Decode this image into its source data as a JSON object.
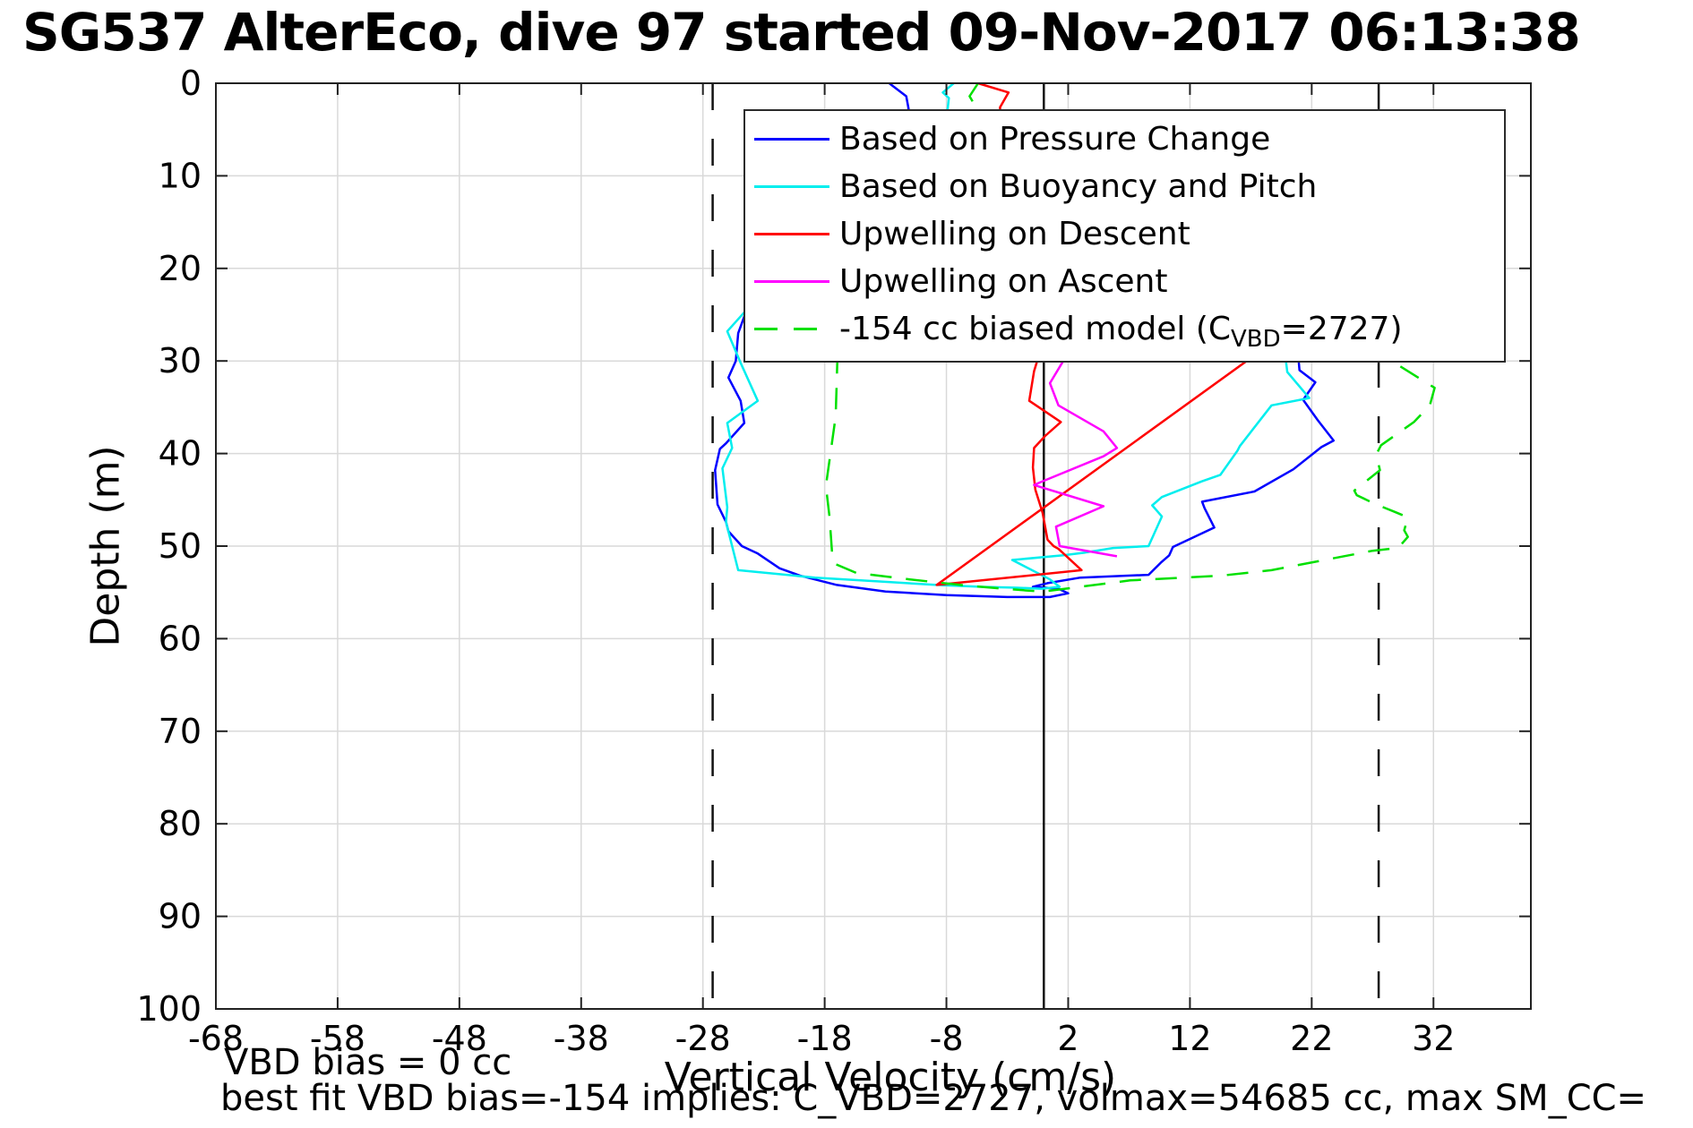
{
  "title": "SG537 AlterEco, dive 97 started 09-Nov-2017 06:13:38",
  "axes": {
    "xlabel": "Vertical Velocity (cm/s)",
    "ylabel": "Depth (m)",
    "x_ticks": [
      -68,
      -58,
      -48,
      -38,
      -28,
      -18,
      -8,
      2,
      12,
      22,
      32
    ],
    "y_ticks": [
      0,
      10,
      20,
      30,
      40,
      50,
      60,
      70,
      80,
      90,
      100
    ]
  },
  "annotations": {
    "vbd_bias": "VBD bias = 0 cc",
    "best_fit": "best fit VBD bias=-154 implies: C_VBD=2727, volmax=54685 cc, max SM_CC="
  },
  "legend": {
    "items": [
      {
        "label": "Based on Pressure Change"
      },
      {
        "label": "Based on Buoyancy and Pitch"
      },
      {
        "label": "Upwelling on Descent"
      },
      {
        "label": "Upwelling on Ascent"
      },
      {
        "label_pre": "-154 cc biased model (C",
        "label_sub": "VBD",
        "label_post": "=2727)"
      }
    ]
  },
  "colors": {
    "grid": "#d9d9d9",
    "axis": "#222222",
    "reference": "#111111",
    "text": "#000000"
  },
  "chart_data": {
    "type": "line",
    "title": "SG537 AlterEco, dive 97 started 09-Nov-2017 06:13:38",
    "xlabel": "Vertical Velocity (cm/s)",
    "ylabel": "Depth (m)",
    "xlim": [
      -68,
      40
    ],
    "ylim": [
      0,
      100
    ],
    "y_inverted": true,
    "grid": true,
    "legend_position": "upper center",
    "x_ticks": [
      -68,
      -58,
      -48,
      -38,
      -28,
      -18,
      -8,
      2,
      12,
      22,
      32
    ],
    "y_ticks": [
      0,
      10,
      20,
      30,
      40,
      50,
      60,
      70,
      80,
      90,
      100
    ],
    "reference_lines": [
      {
        "x": 0,
        "style": "solid",
        "label": "zero vertical velocity"
      },
      {
        "x": -27.2,
        "style": "dashed",
        "label": "max descent pump limit"
      },
      {
        "x": 27.5,
        "style": "dashed",
        "label": "max ascent pump limit"
      }
    ],
    "series": [
      {
        "id": "pressure",
        "name": "Based on Pressure Change",
        "color": "#0000ff",
        "line_style": "solid",
        "points": [
          [
            -12.7,
            0
          ],
          [
            -11.3,
            1.4
          ],
          [
            -11.1,
            2.8
          ],
          [
            -13.5,
            5.5
          ],
          [
            -16.0,
            9
          ],
          [
            -19.0,
            13
          ],
          [
            -22.0,
            18
          ],
          [
            -24.0,
            23
          ],
          [
            -25.1,
            27
          ],
          [
            -25.3,
            30
          ],
          [
            -25.9,
            31.8
          ],
          [
            -24.9,
            34.3
          ],
          [
            -24.6,
            36.7
          ],
          [
            -26.1,
            38.9
          ],
          [
            -26.6,
            39.5
          ],
          [
            -27.0,
            41.8
          ],
          [
            -26.8,
            45.5
          ],
          [
            -26.1,
            47.4
          ],
          [
            -25.9,
            48.4
          ],
          [
            -24.8,
            50
          ],
          [
            -23.5,
            50.8
          ],
          [
            -21.7,
            52.4
          ],
          [
            -20.0,
            53.2
          ],
          [
            -17.0,
            54.2
          ],
          [
            -13.0,
            54.9
          ],
          [
            -8.0,
            55.3
          ],
          [
            -3.0,
            55.5
          ],
          [
            0.5,
            55.5
          ],
          [
            2.0,
            55.1
          ],
          [
            1.2,
            54.6
          ],
          [
            -0.9,
            54.4
          ],
          [
            0.3,
            54.0
          ],
          [
            3.0,
            53.4
          ],
          [
            8.6,
            53.1
          ],
          [
            9.6,
            51.8
          ],
          [
            10.3,
            51.0
          ],
          [
            10.6,
            50.1
          ],
          [
            14.0,
            48.0
          ],
          [
            13.2,
            45.9
          ],
          [
            13.0,
            45.2
          ],
          [
            17.3,
            44.1
          ],
          [
            20.5,
            41.7
          ],
          [
            22.8,
            39.3
          ],
          [
            23.8,
            38.6
          ],
          [
            22.5,
            36.4
          ],
          [
            21.3,
            34.2
          ],
          [
            22.3,
            32.3
          ],
          [
            21.0,
            31.0
          ],
          [
            20.8,
            28
          ],
          [
            20.2,
            22
          ],
          [
            19.5,
            15
          ],
          [
            19.0,
            8
          ],
          [
            18.6,
            4
          ]
        ]
      },
      {
        "id": "buoyancy_pitch",
        "name": "Based on Buoyancy and Pitch",
        "color": "#00eeee",
        "line_style": "solid",
        "points": [
          [
            -7.4,
            0
          ],
          [
            -8.3,
            1.0
          ],
          [
            -7.8,
            1.6
          ],
          [
            -7.9,
            2.8
          ],
          [
            -10.0,
            5
          ],
          [
            -13.0,
            9
          ],
          [
            -16.0,
            13
          ],
          [
            -19.0,
            17
          ],
          [
            -22.0,
            21
          ],
          [
            -24.3,
            24.3
          ],
          [
            -26.0,
            26.8
          ],
          [
            -24.9,
            30.2
          ],
          [
            -23.5,
            34.3
          ],
          [
            -26.0,
            36.7
          ],
          [
            -25.6,
            39.4
          ],
          [
            -26.4,
            41.6
          ],
          [
            -26.0,
            45.8
          ],
          [
            -26.1,
            47.4
          ],
          [
            -25.1,
            52.6
          ],
          [
            -23.5,
            52.8
          ],
          [
            -18.8,
            53.4
          ],
          [
            -13.8,
            53.8
          ],
          [
            -8.8,
            54.2
          ],
          [
            -5.1,
            54.4
          ],
          [
            -2.2,
            54.5
          ],
          [
            -0.2,
            54.6
          ],
          [
            1.3,
            54.4
          ],
          [
            0.5,
            53.6
          ],
          [
            -2.6,
            51.5
          ],
          [
            1.6,
            51.0
          ],
          [
            3.4,
            50.7
          ],
          [
            5.7,
            50.2
          ],
          [
            8.6,
            50.0
          ],
          [
            9.7,
            46.8
          ],
          [
            8.9,
            45.6
          ],
          [
            9.7,
            44.7
          ],
          [
            13.0,
            43.0
          ],
          [
            14.5,
            42.3
          ],
          [
            15.9,
            39.7
          ],
          [
            16.1,
            39.2
          ],
          [
            18.7,
            34.8
          ],
          [
            21.8,
            34.0
          ],
          [
            20.0,
            31.2
          ],
          [
            19.6,
            27
          ],
          [
            20.0,
            21
          ],
          [
            20.5,
            14
          ],
          [
            21.0,
            7
          ],
          [
            21.2,
            4
          ]
        ]
      },
      {
        "id": "upwelling_descent",
        "name": "Upwelling on Descent",
        "color": "#ff0000",
        "line_style": "solid",
        "points": [
          [
            -5.4,
            0
          ],
          [
            -2.9,
            1.0
          ],
          [
            -3.6,
            2.6
          ],
          [
            -3.5,
            5
          ],
          [
            -1.5,
            9
          ],
          [
            -0.5,
            14
          ],
          [
            -0.3,
            20
          ],
          [
            -0.6,
            25
          ],
          [
            -0.2,
            28.5
          ],
          [
            -0.8,
            31.1
          ],
          [
            -1.2,
            34.3
          ],
          [
            1.4,
            36.6
          ],
          [
            0.1,
            38.1
          ],
          [
            -0.8,
            39.4
          ],
          [
            -0.9,
            41.5
          ],
          [
            -0.7,
            43.9
          ],
          [
            -0.1,
            46.4
          ],
          [
            0.3,
            49.3
          ],
          [
            0.8,
            50.0
          ],
          [
            1.2,
            50.3
          ],
          [
            3.1,
            52.6
          ],
          [
            -8.8,
            54.2
          ],
          [
            17.5,
            29.2
          ]
        ]
      },
      {
        "id": "upwelling_ascent",
        "name": "Upwelling on Ascent",
        "color": "#ff00ff",
        "line_style": "solid",
        "points": [
          [
            1.0,
            4
          ],
          [
            0.8,
            10
          ],
          [
            1.2,
            16
          ],
          [
            0.6,
            22
          ],
          [
            1.3,
            27
          ],
          [
            1.6,
            30.0
          ],
          [
            0.5,
            32.4
          ],
          [
            1.2,
            34.8
          ],
          [
            4.9,
            37.6
          ],
          [
            6.0,
            39.4
          ],
          [
            4.9,
            40.3
          ],
          [
            -0.1,
            43.0
          ],
          [
            -0.8,
            43.4
          ],
          [
            4.9,
            45.7
          ],
          [
            1.0,
            47.9
          ],
          [
            1.3,
            50.0
          ],
          [
            6.0,
            51.1
          ]
        ]
      },
      {
        "id": "biased_model",
        "name": "-154 cc biased model (C_VBD=2727)",
        "color": "#00e000",
        "line_style": "dashed",
        "points": [
          [
            -5.4,
            0
          ],
          [
            -6.1,
            1.4
          ],
          [
            -5.7,
            2.3
          ],
          [
            -8.0,
            5
          ],
          [
            -11.0,
            9
          ],
          [
            -14.0,
            13
          ],
          [
            -15.8,
            17
          ],
          [
            -16.6,
            22
          ],
          [
            -16.9,
            27
          ],
          [
            -17.0,
            31.9
          ],
          [
            -17.1,
            36
          ],
          [
            -17.9,
            43.5
          ],
          [
            -17.6,
            46.9
          ],
          [
            -17.4,
            50.6
          ],
          [
            -17.2,
            51.9
          ],
          [
            -15.4,
            52.9
          ],
          [
            -11.0,
            53.6
          ],
          [
            -6.1,
            54.3
          ],
          [
            -1.4,
            54.8
          ],
          [
            0.0,
            54.9
          ],
          [
            7.1,
            53.7
          ],
          [
            14.5,
            53.2
          ],
          [
            18.7,
            52.6
          ],
          [
            27.0,
            50.5
          ],
          [
            29.1,
            50.2
          ],
          [
            29.9,
            49.0
          ],
          [
            29.6,
            48.3
          ],
          [
            29.9,
            46.9
          ],
          [
            28.8,
            46.3
          ],
          [
            27.3,
            45.5
          ],
          [
            25.7,
            44.5
          ],
          [
            25.5,
            44.0
          ],
          [
            27.6,
            41.8
          ],
          [
            27.3,
            40.1
          ],
          [
            27.7,
            39.1
          ],
          [
            30.4,
            36.6
          ],
          [
            31.7,
            34.8
          ],
          [
            32.1,
            32.9
          ],
          [
            28.8,
            30.2
          ],
          [
            28.5,
            28.5
          ]
        ]
      }
    ]
  }
}
